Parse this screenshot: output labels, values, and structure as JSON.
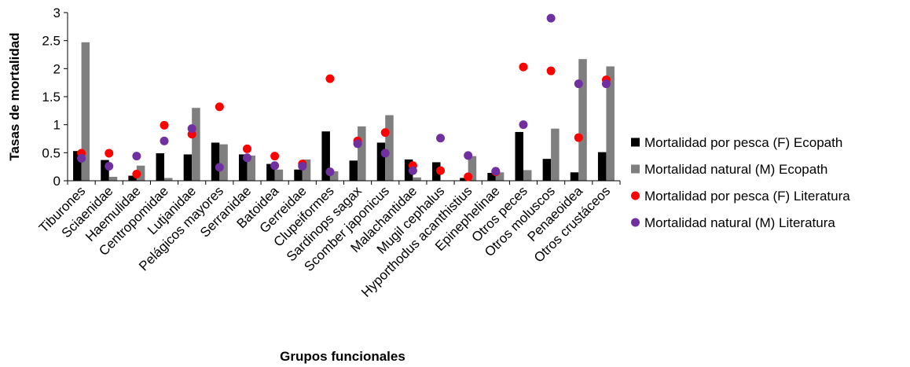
{
  "chart_data": {
    "type": "bar",
    "xlabel": "Grupos funcionales",
    "ylabel": "Tasas de mortalidad",
    "ylim": [
      0,
      3
    ],
    "yticks": [
      "0",
      "0.5",
      "1",
      "1.5",
      "2",
      "2.5",
      "3"
    ],
    "grid": false,
    "legend_position": "right",
    "categories": [
      "Tiburones",
      "Sciaenidae",
      "Haemulidae",
      "Centropomidae",
      "Lutjanidae",
      "Pelágicos mayores",
      "Serranidae",
      "Batoidea",
      "Gerreidae",
      "Clupeiformes",
      "Sardinops sagax",
      "Scomber japonicus",
      "Malachantidae",
      "Mugil cephalus",
      "Hyporthodus acanthistius",
      "Epinephelinae",
      "Otros peces",
      "Otros moluscos",
      "Penaeoidea",
      "Otros crustáceos"
    ],
    "series": [
      {
        "name": "Mortalidad por pesca (F) Ecopath",
        "kind": "bar",
        "color": "#000000",
        "values": [
          0.53,
          0.37,
          0.09,
          0.49,
          0.47,
          0.68,
          0.47,
          0.3,
          0.2,
          0.88,
          0.36,
          0.68,
          0.38,
          0.33,
          0.05,
          0.14,
          0.87,
          0.39,
          0.15,
          0.51
        ]
      },
      {
        "name": "Mortalidad natural (M) Ecopath",
        "kind": "bar",
        "color": "#7f7f7f",
        "values": [
          2.47,
          0.07,
          0.27,
          0.05,
          1.3,
          0.65,
          0.45,
          0.2,
          0.38,
          0.17,
          0.97,
          1.17,
          0.06,
          0.0,
          0.44,
          0.15,
          0.19,
          0.93,
          2.17,
          2.04
        ]
      },
      {
        "name": "Mortalidad por pesca (F) Literatura",
        "kind": "point",
        "color": "#ff0000",
        "values": [
          0.49,
          0.49,
          0.12,
          0.99,
          0.83,
          1.32,
          0.57,
          0.44,
          0.3,
          1.82,
          0.71,
          0.86,
          0.27,
          0.18,
          0.07,
          0.16,
          2.03,
          1.96,
          0.77,
          1.8
        ]
      },
      {
        "name": "Mortalidad natural (M) Literatura",
        "kind": "point",
        "color": "#7030a0",
        "values": [
          0.4,
          0.26,
          0.44,
          0.71,
          0.93,
          0.24,
          0.41,
          0.27,
          0.26,
          0.16,
          0.66,
          0.49,
          0.18,
          0.76,
          0.45,
          0.17,
          1.0,
          2.9,
          1.73,
          1.73
        ]
      }
    ]
  }
}
